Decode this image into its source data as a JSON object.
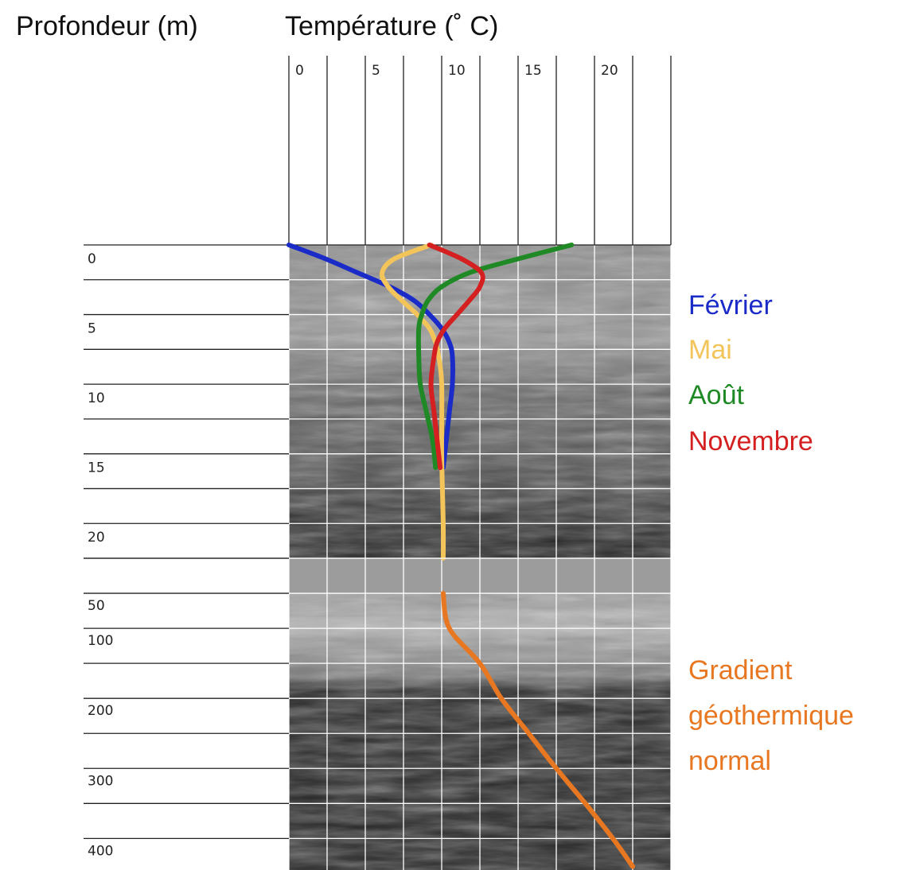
{
  "chart_data": [
    {
      "type": "line",
      "y_label": "Profondeur (m)",
      "x_label": "Température (˚ C)",
      "xlim": [
        0,
        25
      ],
      "xticks": [
        0,
        5,
        10,
        15,
        20
      ],
      "xgrid": [
        0,
        2.5,
        5,
        7.5,
        10,
        12.5,
        15,
        17.5,
        20,
        22.5,
        25
      ],
      "ylim": [
        0,
        22.5
      ],
      "yticks": [
        0,
        5,
        10,
        15,
        20
      ],
      "ygrid": [
        0,
        2.5,
        5,
        7.5,
        10,
        12.5,
        15,
        17.5,
        20,
        22.5
      ],
      "series": [
        {
          "name": "Février",
          "color": "#1a2bc8",
          "depths": [
            0,
            1,
            2,
            3,
            4,
            5,
            6,
            7,
            8,
            10,
            12,
            14,
            16
          ],
          "values": [
            0,
            2.4,
            4.5,
            6.6,
            8.2,
            9.2,
            10,
            10.5,
            10.7,
            10.7,
            10.5,
            10.3,
            10.1
          ]
        },
        {
          "name": "Mai",
          "color": "#f2c45a",
          "depths": [
            0,
            1,
            2,
            3,
            4,
            5,
            6,
            7,
            8,
            10,
            15,
            20,
            22.5
          ],
          "values": [
            9.3,
            6.9,
            6.1,
            6.5,
            7.4,
            8.4,
            9.2,
            9.6,
            9.8,
            10,
            10,
            10.1,
            10.1
          ]
        },
        {
          "name": "Août",
          "color": "#1f8a25",
          "depths": [
            0,
            1,
            2,
            3,
            4,
            5,
            6,
            8,
            10,
            12,
            14,
            16
          ],
          "values": [
            18.5,
            15,
            11.8,
            10,
            9.1,
            8.7,
            8.5,
            8.5,
            8.6,
            9,
            9.4,
            9.6
          ]
        },
        {
          "name": "Novembre",
          "color": "#d42020",
          "depths": [
            0,
            1,
            2,
            3,
            4,
            5,
            6,
            7,
            8,
            10,
            12,
            14,
            16
          ],
          "values": [
            9.2,
            11.3,
            12.6,
            12.5,
            11.8,
            11,
            10.2,
            9.7,
            9.5,
            9.3,
            9.5,
            9.7,
            9.9
          ]
        }
      ]
    },
    {
      "type": "line",
      "xlim": [
        0,
        25
      ],
      "ylim": [
        0,
        445
      ],
      "yticks": [
        50,
        100,
        200,
        300,
        400
      ],
      "ygrid": [
        0,
        50,
        100,
        150,
        200,
        250,
        300,
        350,
        400
      ],
      "series": [
        {
          "name": "Gradient géothermique normal",
          "color": "#e87722",
          "depths": [
            50,
            100,
            150,
            200,
            250,
            300,
            350,
            400,
            440
          ],
          "values": [
            10.1,
            10.5,
            12.5,
            13.9,
            15.7,
            17.5,
            19.4,
            21.2,
            22.5
          ]
        }
      ]
    }
  ]
}
